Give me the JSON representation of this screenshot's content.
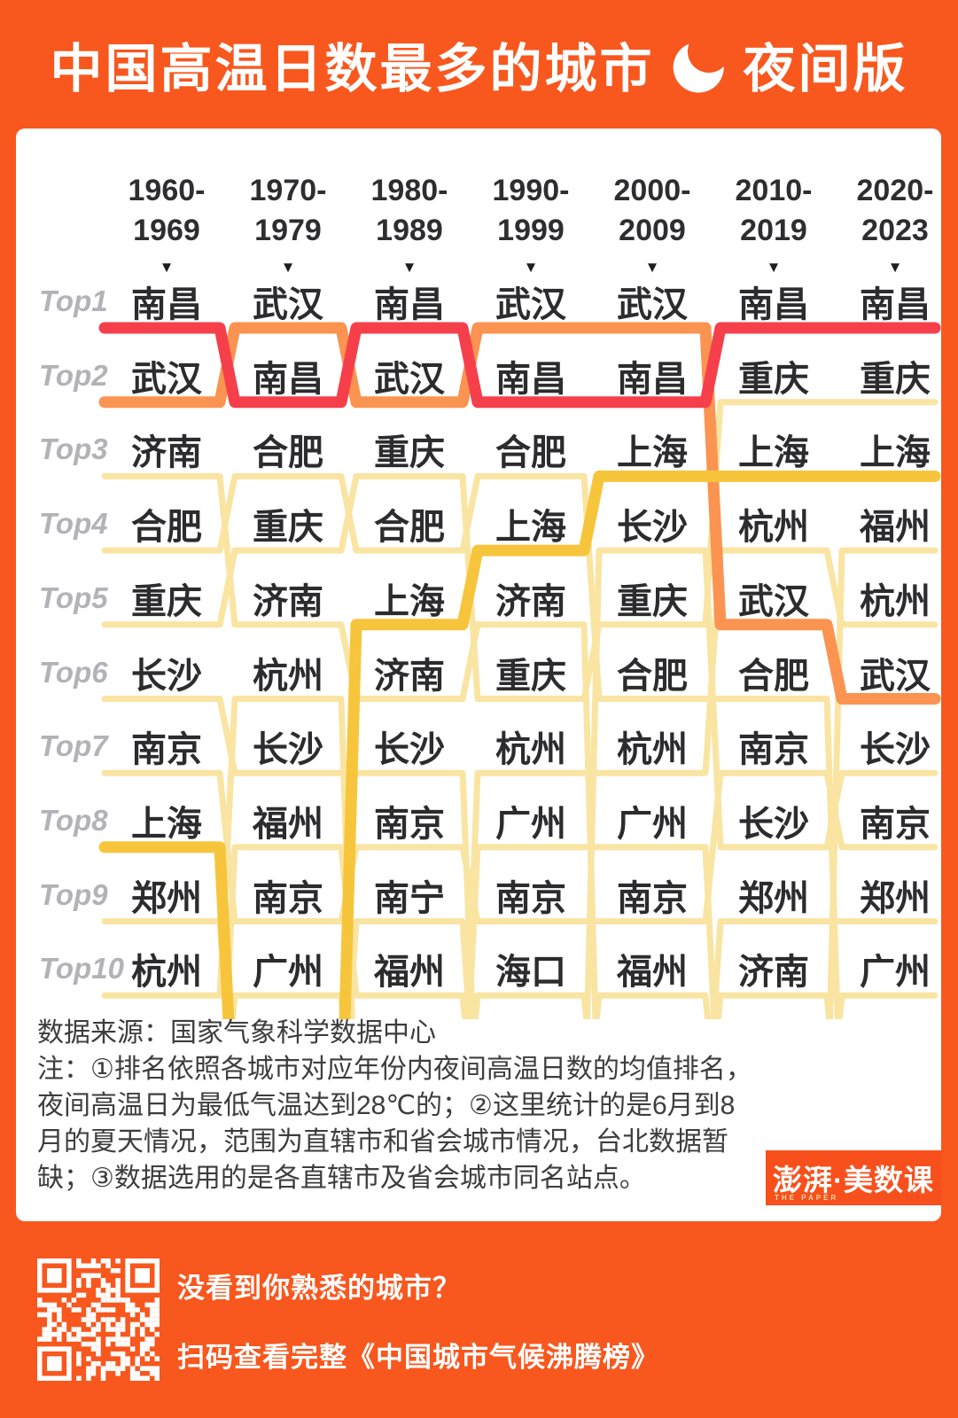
{
  "title": {
    "main": "中国高温日数最多的城市",
    "badge": "夜间版",
    "moon_icon": "crescent-moon"
  },
  "chart_data": {
    "type": "bump",
    "title": "中国高温日数最多的城市（夜间版）",
    "row_labels": [
      "Top1",
      "Top2",
      "Top3",
      "Top4",
      "Top5",
      "Top6",
      "Top7",
      "Top8",
      "Top9",
      "Top10"
    ],
    "columns": [
      "1960-1969",
      "1970-1979",
      "1980-1989",
      "1990-1999",
      "2000-2009",
      "2010-2019",
      "2020-2023"
    ],
    "column_display": [
      [
        "1960-",
        "1969"
      ],
      [
        "1970-",
        "1979"
      ],
      [
        "1980-",
        "1989"
      ],
      [
        "1990-",
        "1999"
      ],
      [
        "2000-",
        "2009"
      ],
      [
        "2010-",
        "2019"
      ],
      [
        "2020-",
        "2023"
      ]
    ],
    "column_marker": "▼",
    "rankings": [
      [
        "南昌",
        "武汉",
        "济南",
        "合肥",
        "重庆",
        "长沙",
        "南京",
        "上海",
        "郑州",
        "杭州"
      ],
      [
        "武汉",
        "南昌",
        "合肥",
        "重庆",
        "济南",
        "杭州",
        "长沙",
        "福州",
        "南京",
        "广州"
      ],
      [
        "南昌",
        "武汉",
        "重庆",
        "合肥",
        "上海",
        "济南",
        "长沙",
        "南京",
        "南宁",
        "福州"
      ],
      [
        "武汉",
        "南昌",
        "合肥",
        "上海",
        "济南",
        "重庆",
        "杭州",
        "广州",
        "南京",
        "海口"
      ],
      [
        "武汉",
        "南昌",
        "上海",
        "长沙",
        "重庆",
        "合肥",
        "杭州",
        "广州",
        "南京",
        "福州"
      ],
      [
        "南昌",
        "重庆",
        "上海",
        "杭州",
        "武汉",
        "合肥",
        "南京",
        "长沙",
        "郑州",
        "济南"
      ],
      [
        "南昌",
        "重庆",
        "上海",
        "福州",
        "杭州",
        "武汉",
        "长沙",
        "南京",
        "郑州",
        "广州"
      ]
    ],
    "highlighted_series": {
      "南昌": "#F5404C",
      "武汉": "#FB9351",
      "上海": "#F6C53B"
    },
    "default_line_color": "#F9E4A2",
    "line_width_highlight": 13,
    "line_width_default": 7,
    "legend_position": "none",
    "grid": false
  },
  "footer": {
    "source": "数据来源：国家气象科学数据中心",
    "note": "注：①排名依照各城市对应年份内夜间高温日数的均值排名，夜间高温日为最低气温达到28℃的；②这里统计的是6月到8月的夏天情况，范围为直辖市和省会城市情况，台北数据暂缺；③数据选用的是各直辖市及省会城市同名站点。"
  },
  "logo": {
    "brand": "澎湃·美数课",
    "sub": "THE PAPER"
  },
  "promo": {
    "line1": "没看到你熟悉的城市？",
    "line2": "扫码查看完整《中国城市气候沸腾榜》"
  },
  "colors": {
    "background": "#F8571E",
    "card": "#FFFFFF",
    "city_text": "#2C2C2E",
    "rank_label": "#B2B2B8",
    "header_text": "#2E2E30",
    "note_text": "#3D3D3D"
  }
}
